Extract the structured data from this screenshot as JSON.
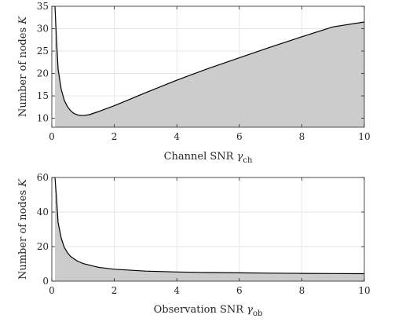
{
  "chart_data": [
    {
      "type": "area",
      "xlabel": "Channel SNR",
      "xlabel_symbol": "γ",
      "xlabel_sub": "ch",
      "ylabel": "Number of nodes",
      "ylabel_symbol": "K",
      "xlim": [
        0,
        10
      ],
      "ylim": [
        8,
        35
      ],
      "xticks": [
        0,
        2,
        4,
        6,
        8,
        10
      ],
      "yticks": [
        10,
        15,
        20,
        25,
        30,
        35
      ],
      "grid": true,
      "fill_color": "#cccccc",
      "line_color": "#000000",
      "x": [
        0.1,
        0.15,
        0.2,
        0.3,
        0.4,
        0.5,
        0.6,
        0.7,
        0.8,
        0.9,
        1.0,
        1.2,
        1.5,
        2,
        3,
        4,
        5,
        6,
        7,
        8,
        9,
        10
      ],
      "y": [
        35,
        27.5,
        21,
        16.5,
        14.0,
        12.6,
        11.7,
        11.1,
        10.8,
        10.65,
        10.6,
        10.8,
        11.5,
        12.8,
        15.7,
        18.5,
        21.1,
        23.5,
        25.9,
        28.2,
        30.4,
        31.5
      ]
    },
    {
      "type": "area",
      "xlabel": "Observation SNR",
      "xlabel_symbol": "γ",
      "xlabel_sub": "ob",
      "ylabel": "Number of nodes",
      "ylabel_symbol": "K",
      "xlim": [
        0,
        10
      ],
      "ylim": [
        0,
        60
      ],
      "xticks": [
        0,
        2,
        4,
        6,
        8,
        10
      ],
      "yticks": [
        0,
        20,
        40,
        60
      ],
      "grid": true,
      "fill_color": "#cccccc",
      "line_color": "#000000",
      "x": [
        0.1,
        0.15,
        0.2,
        0.3,
        0.4,
        0.5,
        0.6,
        0.8,
        1.0,
        1.5,
        2,
        3,
        4,
        5,
        6,
        7,
        8,
        9,
        10
      ],
      "y": [
        60,
        48,
        34,
        25,
        19.5,
        16.5,
        14.3,
        11.8,
        10.2,
        8.0,
        6.9,
        5.8,
        5.3,
        5.0,
        4.8,
        4.65,
        4.5,
        4.4,
        4.3
      ]
    }
  ]
}
